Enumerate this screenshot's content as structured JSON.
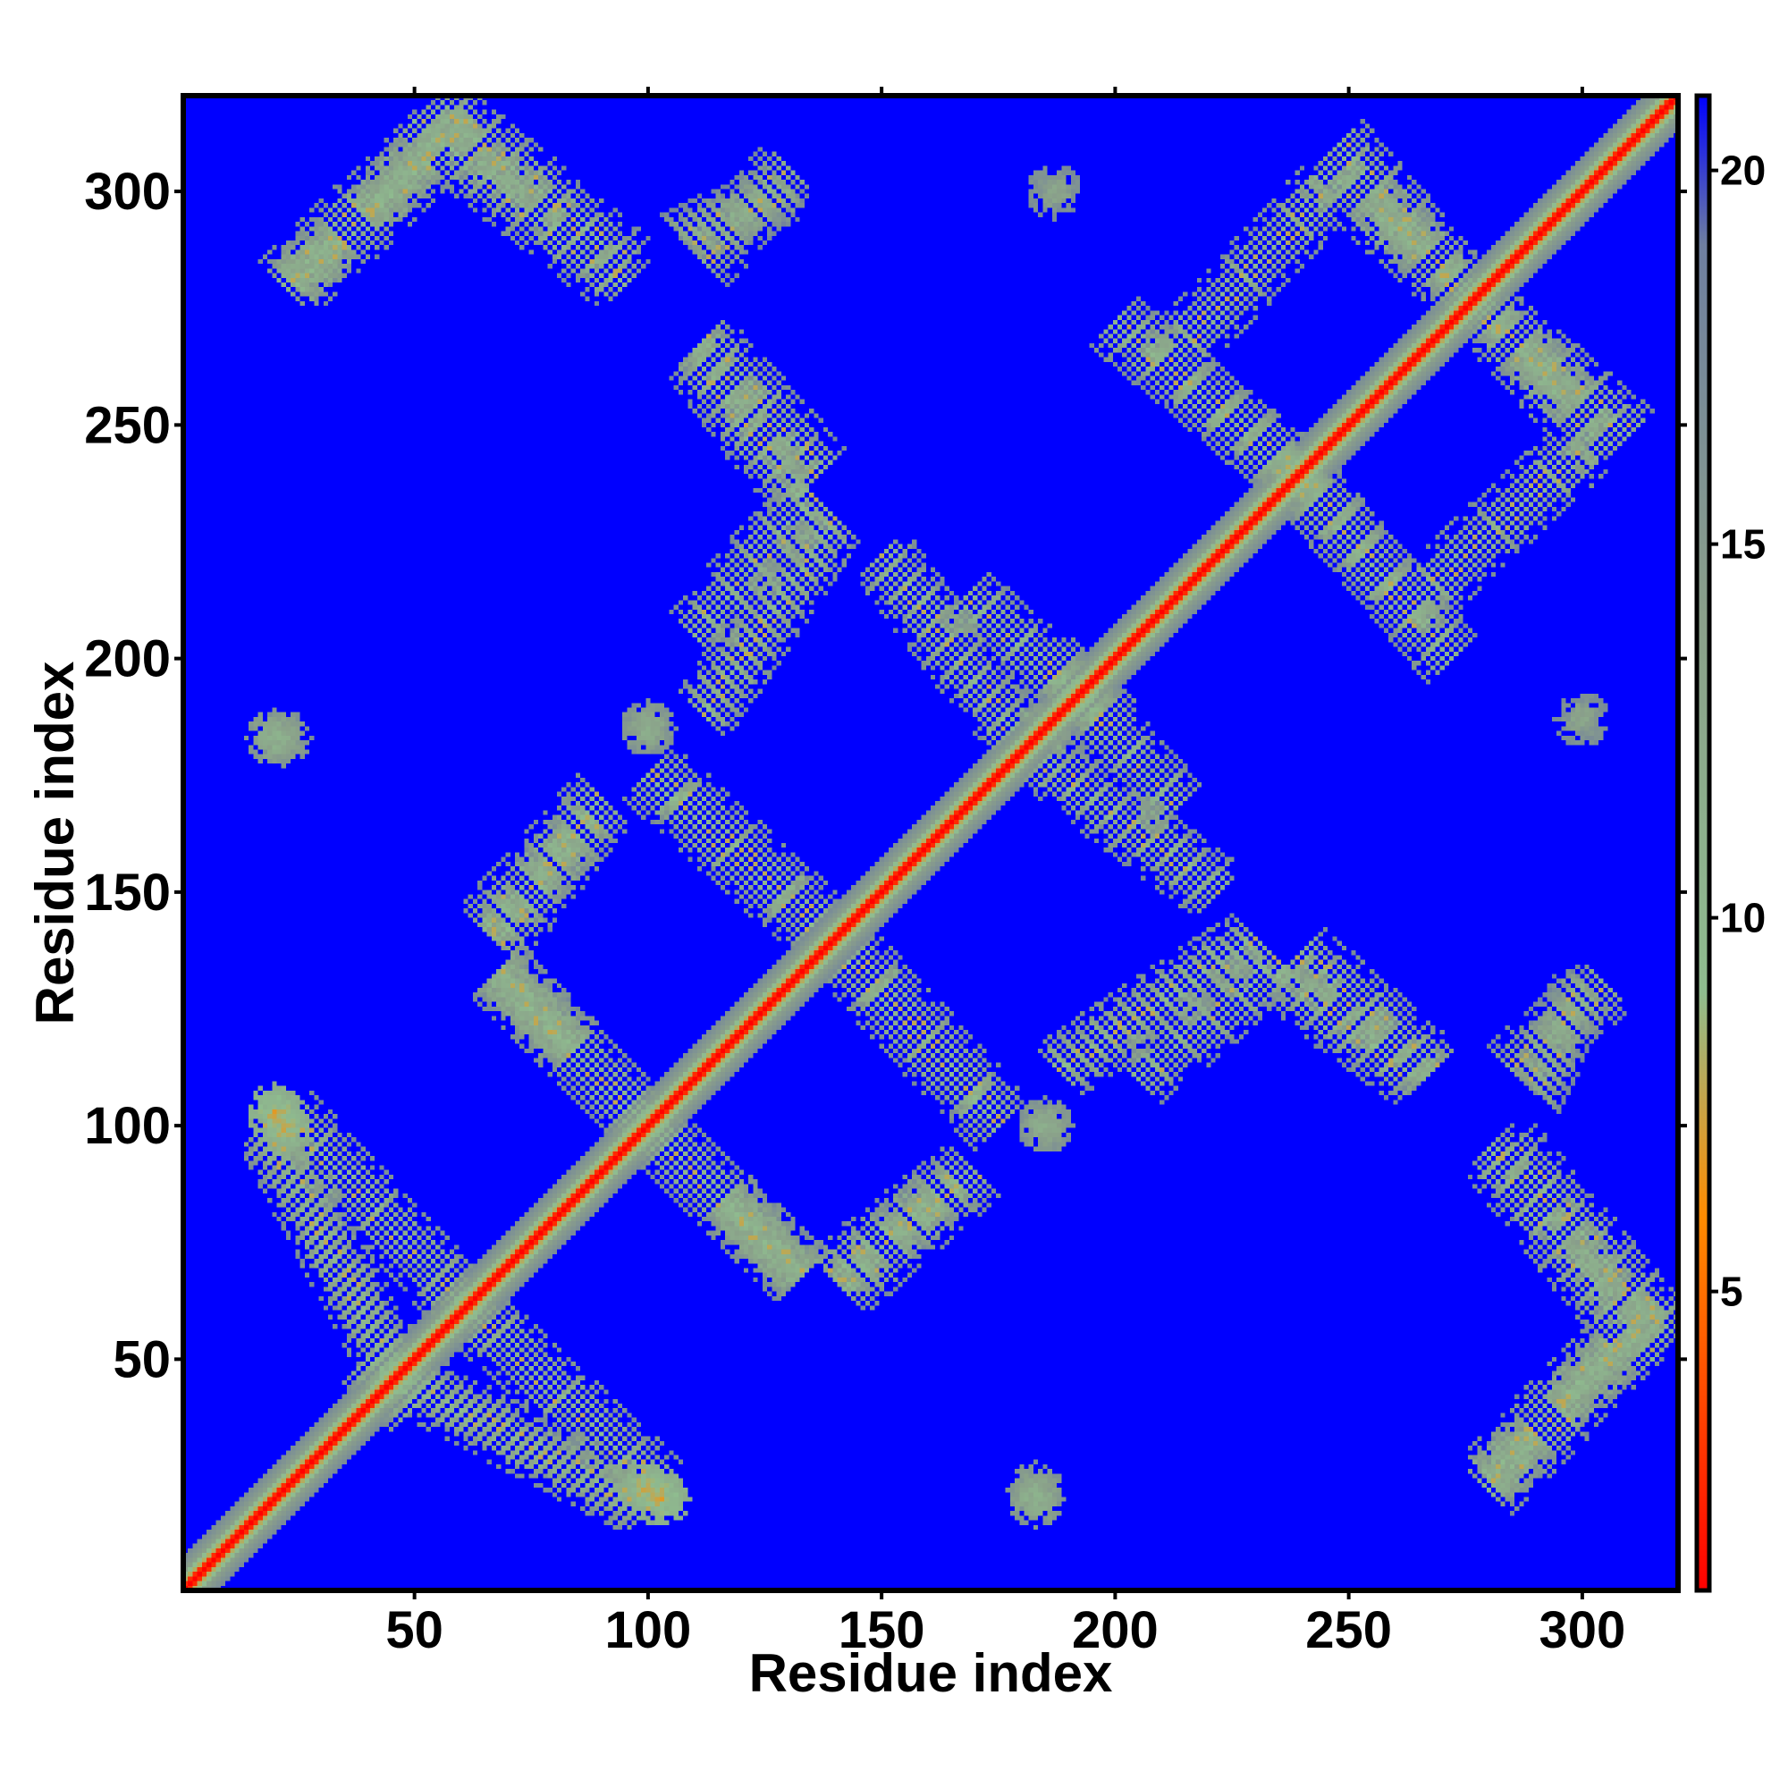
{
  "chart_data": {
    "type": "heatmap",
    "title": "",
    "xlabel": "Residue index",
    "ylabel": "Residue index",
    "n_residues": 320,
    "xlim": [
      1,
      320
    ],
    "ylim": [
      1,
      320
    ],
    "x_ticks": [
      50,
      100,
      150,
      200,
      250,
      300
    ],
    "y_ticks": [
      50,
      100,
      150,
      200,
      250,
      300
    ],
    "colorbar": {
      "range": [
        1,
        21
      ],
      "ticks": [
        5,
        10,
        15,
        20
      ],
      "stops": [
        {
          "value": 1,
          "color": "#ff0000"
        },
        {
          "value": 6,
          "color": "#ff8c00"
        },
        {
          "value": 9,
          "color": "#8fbc8f"
        },
        {
          "value": 14,
          "color": "#8aa08a"
        },
        {
          "value": 19,
          "color": "#6f7fa0"
        },
        {
          "value": 21,
          "color": "#0000ff"
        }
      ]
    },
    "background_value": 21,
    "diagonal": {
      "value_on_diagonal": 1,
      "band_width_residues": 7
    },
    "contact_features": [
      {
        "kind": "antiparallel",
        "from": [
          40,
          50
        ],
        "to": [
          100,
          18
        ],
        "value": 11
      },
      {
        "kind": "antiparallel",
        "from": [
          22,
          103
        ],
        "to": [
          62,
          60
        ],
        "value": 11
      },
      {
        "kind": "antiparallel",
        "from": [
          68,
          132
        ],
        "to": [
          100,
          100
        ],
        "value": 11
      },
      {
        "kind": "antiparallel",
        "from": [
          100,
          100
        ],
        "to": [
          133,
          68
        ],
        "value": 11
      },
      {
        "kind": "antiparallel",
        "from": [
          100,
          175
        ],
        "to": [
          135,
          143
        ],
        "value": 11
      },
      {
        "kind": "antiparallel",
        "from": [
          145,
          135
        ],
        "to": [
          175,
          102
        ],
        "value": 11
      },
      {
        "kind": "antiparallel",
        "from": [
          168,
          213
        ],
        "to": [
          200,
          185
        ],
        "value": 11
      },
      {
        "kind": "antiparallel",
        "from": [
          185,
          178
        ],
        "to": [
          222,
          150
        ],
        "value": 11
      },
      {
        "kind": "antiparallel",
        "from": [
          112,
          268
        ],
        "to": [
          137,
          240
        ],
        "value": 11
      },
      {
        "kind": "antiparallel",
        "from": [
          200,
          272
        ],
        "to": [
          238,
          240
        ],
        "value": 11
      },
      {
        "kind": "antiparallel",
        "from": [
          238,
          240
        ],
        "to": [
          272,
          200
        ],
        "value": 11
      },
      {
        "kind": "antiparallel",
        "from": [
          245,
          305
        ],
        "to": [
          275,
          278
        ],
        "value": 11
      },
      {
        "kind": "antiparallel",
        "from": [
          278,
          275
        ],
        "to": [
          310,
          248
        ],
        "value": 11
      },
      {
        "kind": "antiparallel",
        "from": [
          235,
          132
        ],
        "to": [
          265,
          110
        ],
        "value": 11
      },
      {
        "kind": "antiparallel",
        "from": [
          285,
          95
        ],
        "to": [
          318,
          55
        ],
        "value": 11
      },
      {
        "kind": "antiparallel",
        "from": [
          50,
          315
        ],
        "to": [
          95,
          280
        ],
        "value": 11
      },
      {
        "kind": "parallel",
        "from": [
          22,
          280
        ],
        "to": [
          55,
          312
        ],
        "value": 11
      },
      {
        "kind": "parallel",
        "from": [
          108,
          290
        ],
        "to": [
          130,
          300
        ],
        "value": 12
      },
      {
        "kind": "parallel",
        "from": [
          112,
          188
        ],
        "to": [
          140,
          230
        ],
        "value": 11
      },
      {
        "kind": "parallel",
        "from": [
          65,
          142
        ],
        "to": [
          90,
          170
        ],
        "value": 11
      },
      {
        "kind": "parallel",
        "from": [
          140,
          68
        ],
        "to": [
          168,
          90
        ],
        "value": 11
      },
      {
        "kind": "parallel",
        "from": [
          205,
          110
        ],
        "to": [
          235,
          135
        ],
        "value": 11
      },
      {
        "kind": "parallel",
        "from": [
          210,
          262
        ],
        "to": [
          245,
          300
        ],
        "value": 11
      },
      {
        "kind": "parallel",
        "from": [
          280,
          25
        ],
        "to": [
          315,
          62
        ],
        "value": 11
      },
      {
        "kind": "parallel",
        "from": [
          285,
          112
        ],
        "to": [
          305,
          130
        ],
        "value": 12
      },
      {
        "kind": "blob",
        "center": [
          20,
          183
        ],
        "value": 11
      },
      {
        "kind": "blob",
        "center": [
          20,
          103
        ],
        "value": 8
      },
      {
        "kind": "blob",
        "center": [
          100,
          22
        ],
        "value": 8
      },
      {
        "kind": "blob",
        "center": [
          183,
          22
        ],
        "value": 12
      },
      {
        "kind": "blob",
        "center": [
          185,
          100
        ],
        "value": 12
      },
      {
        "kind": "blob",
        "center": [
          185,
          185
        ],
        "value": 12
      },
      {
        "kind": "blob",
        "center": [
          100,
          185
        ],
        "value": 12
      },
      {
        "kind": "blob",
        "center": [
          300,
          187
        ],
        "value": 13
      }
    ]
  }
}
